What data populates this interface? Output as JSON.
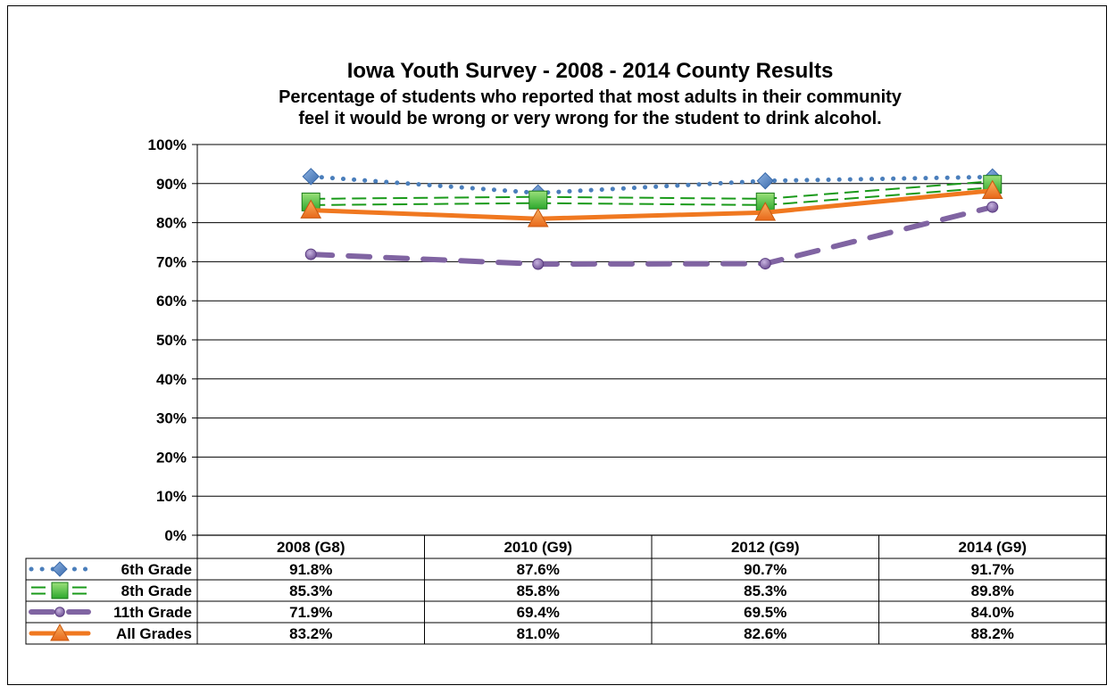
{
  "chart_data": {
    "type": "line",
    "title": "Iowa Youth Survey - 2008 - 2014 County Results",
    "subtitle_lines": [
      "Percentage of students who reported that most adults in their community",
      "feel it would be wrong or very wrong for the student to drink alcohol."
    ],
    "categories": [
      "2008 (G8)",
      "2010 (G9)",
      "2012 (G9)",
      "2014 (G9)"
    ],
    "ylim": [
      0,
      100
    ],
    "yticks": [
      "0%",
      "10%",
      "20%",
      "30%",
      "40%",
      "50%",
      "60%",
      "70%",
      "80%",
      "90%",
      "100%"
    ],
    "grid": true,
    "legend": "data-table",
    "series": [
      {
        "name": "6th Grade",
        "values": [
          91.8,
          87.6,
          90.7,
          91.7
        ],
        "labels": [
          "91.8%",
          "87.6%",
          "90.7%",
          "91.7%"
        ],
        "color": "#4a7ebb",
        "marker": "diamond",
        "line_style": "dotted"
      },
      {
        "name": "8th Grade",
        "values": [
          85.3,
          85.8,
          85.3,
          89.8
        ],
        "labels": [
          "85.3%",
          "85.8%",
          "85.3%",
          "89.8%"
        ],
        "color": "#1a9a1a",
        "marker": "square",
        "line_style": "double-dashed"
      },
      {
        "name": "11th Grade",
        "values": [
          71.9,
          69.4,
          69.5,
          84.0
        ],
        "labels": [
          "71.9%",
          "69.4%",
          "69.5%",
          "84.0%"
        ],
        "color": "#8064a2",
        "marker": "circle",
        "line_style": "long-dashed"
      },
      {
        "name": "All Grades",
        "values": [
          83.2,
          81.0,
          82.6,
          88.2
        ],
        "labels": [
          "83.2%",
          "81.0%",
          "82.6%",
          "88.2%"
        ],
        "color": "#f07820",
        "marker": "triangle",
        "line_style": "solid"
      }
    ]
  }
}
